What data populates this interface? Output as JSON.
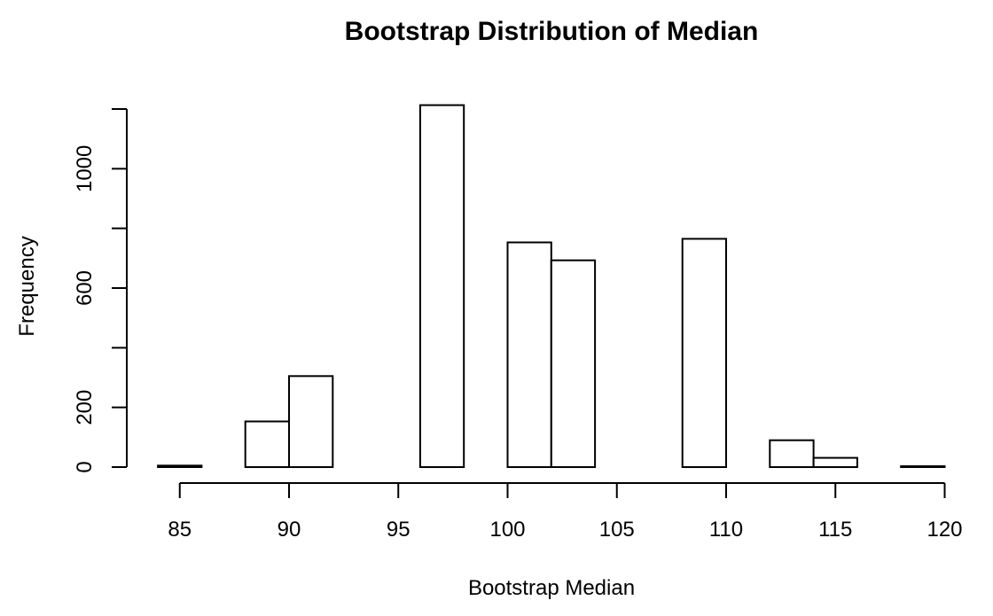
{
  "chart_data": {
    "type": "bar",
    "title": "Bootstrap Distribution of Median",
    "xlabel": "Bootstrap Median",
    "ylabel": "Frequency",
    "bins": [
      {
        "start": 84,
        "end": 86,
        "count": 5
      },
      {
        "start": 86,
        "end": 88,
        "count": 0
      },
      {
        "start": 88,
        "end": 90,
        "count": 153
      },
      {
        "start": 90,
        "end": 92,
        "count": 305
      },
      {
        "start": 92,
        "end": 94,
        "count": 0
      },
      {
        "start": 94,
        "end": 96,
        "count": 0
      },
      {
        "start": 96,
        "end": 98,
        "count": 1213
      },
      {
        "start": 98,
        "end": 100,
        "count": 0
      },
      {
        "start": 100,
        "end": 102,
        "count": 753
      },
      {
        "start": 102,
        "end": 104,
        "count": 693
      },
      {
        "start": 104,
        "end": 106,
        "count": 0
      },
      {
        "start": 106,
        "end": 108,
        "count": 0
      },
      {
        "start": 108,
        "end": 110,
        "count": 765
      },
      {
        "start": 110,
        "end": 112,
        "count": 0
      },
      {
        "start": 112,
        "end": 114,
        "count": 90
      },
      {
        "start": 114,
        "end": 116,
        "count": 31
      },
      {
        "start": 116,
        "end": 118,
        "count": 0
      },
      {
        "start": 118,
        "end": 120,
        "count": 3
      }
    ],
    "xlim": [
      84,
      120
    ],
    "ylim": [
      0,
      1213
    ],
    "x_ticks": [
      "85",
      "90",
      "95",
      "100",
      "105",
      "110",
      "115",
      "120"
    ],
    "y_ticks": [
      "0",
      "200",
      "600",
      "1000"
    ],
    "y_tick_marks": [
      0,
      200,
      400,
      600,
      800,
      1000,
      1200
    ],
    "grid": false,
    "legend": "none"
  }
}
